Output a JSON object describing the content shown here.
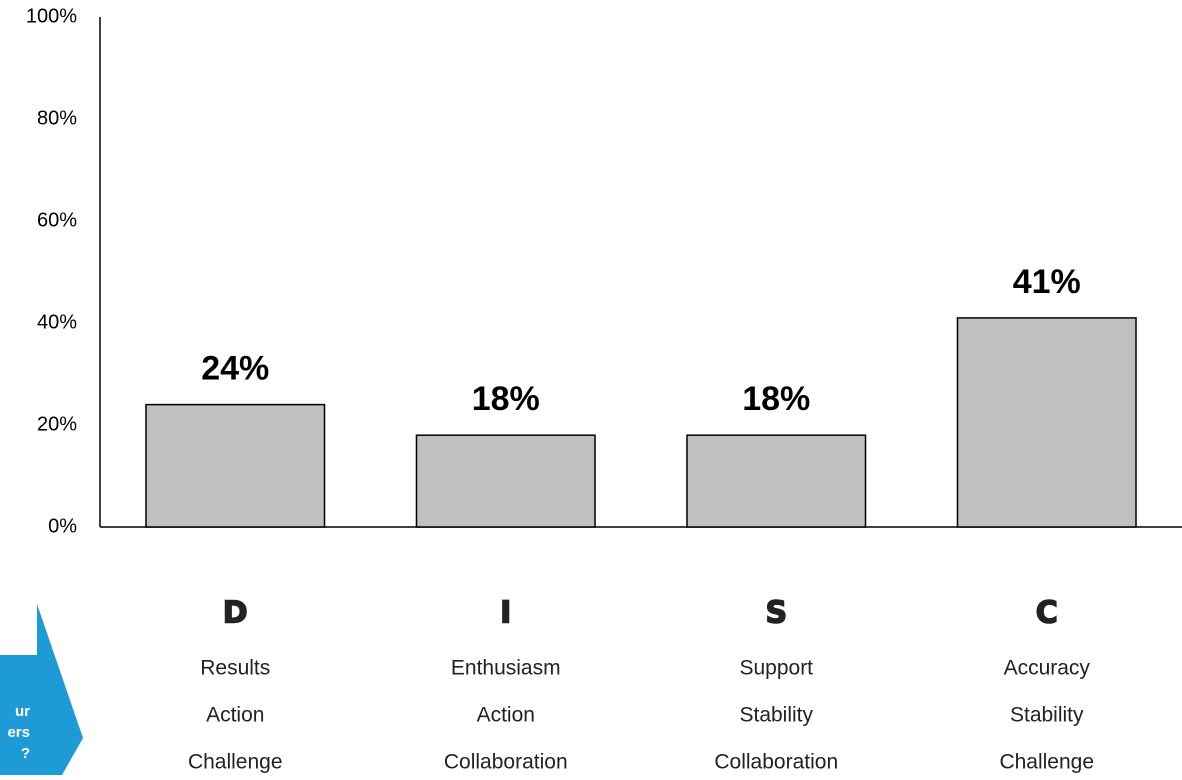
{
  "chart_data": {
    "type": "bar",
    "categories": [
      "D",
      "I",
      "S",
      "C"
    ],
    "descriptors": [
      [
        "Results",
        "Action",
        "Challenge"
      ],
      [
        "Enthusiasm",
        "Action",
        "Collaboration"
      ],
      [
        "Support",
        "Stability",
        "Collaboration"
      ],
      [
        "Accuracy",
        "Stability",
        "Challenge"
      ]
    ],
    "values": [
      24,
      18,
      18,
      41
    ],
    "value_labels": [
      "24%",
      "18%",
      "18%",
      "41%"
    ],
    "color": "#c0c0c0",
    "ylim": [
      0,
      100
    ],
    "yticks": [
      {
        "value": 0,
        "label": "0%"
      },
      {
        "value": 20,
        "label": "20%"
      },
      {
        "value": 40,
        "label": "40%"
      },
      {
        "value": 60,
        "label": "60%"
      },
      {
        "value": 80,
        "label": "80%"
      },
      {
        "value": 100,
        "label": "100%"
      }
    ],
    "grid": false,
    "annotation": [
      "ur",
      "ers",
      "?"
    ]
  }
}
